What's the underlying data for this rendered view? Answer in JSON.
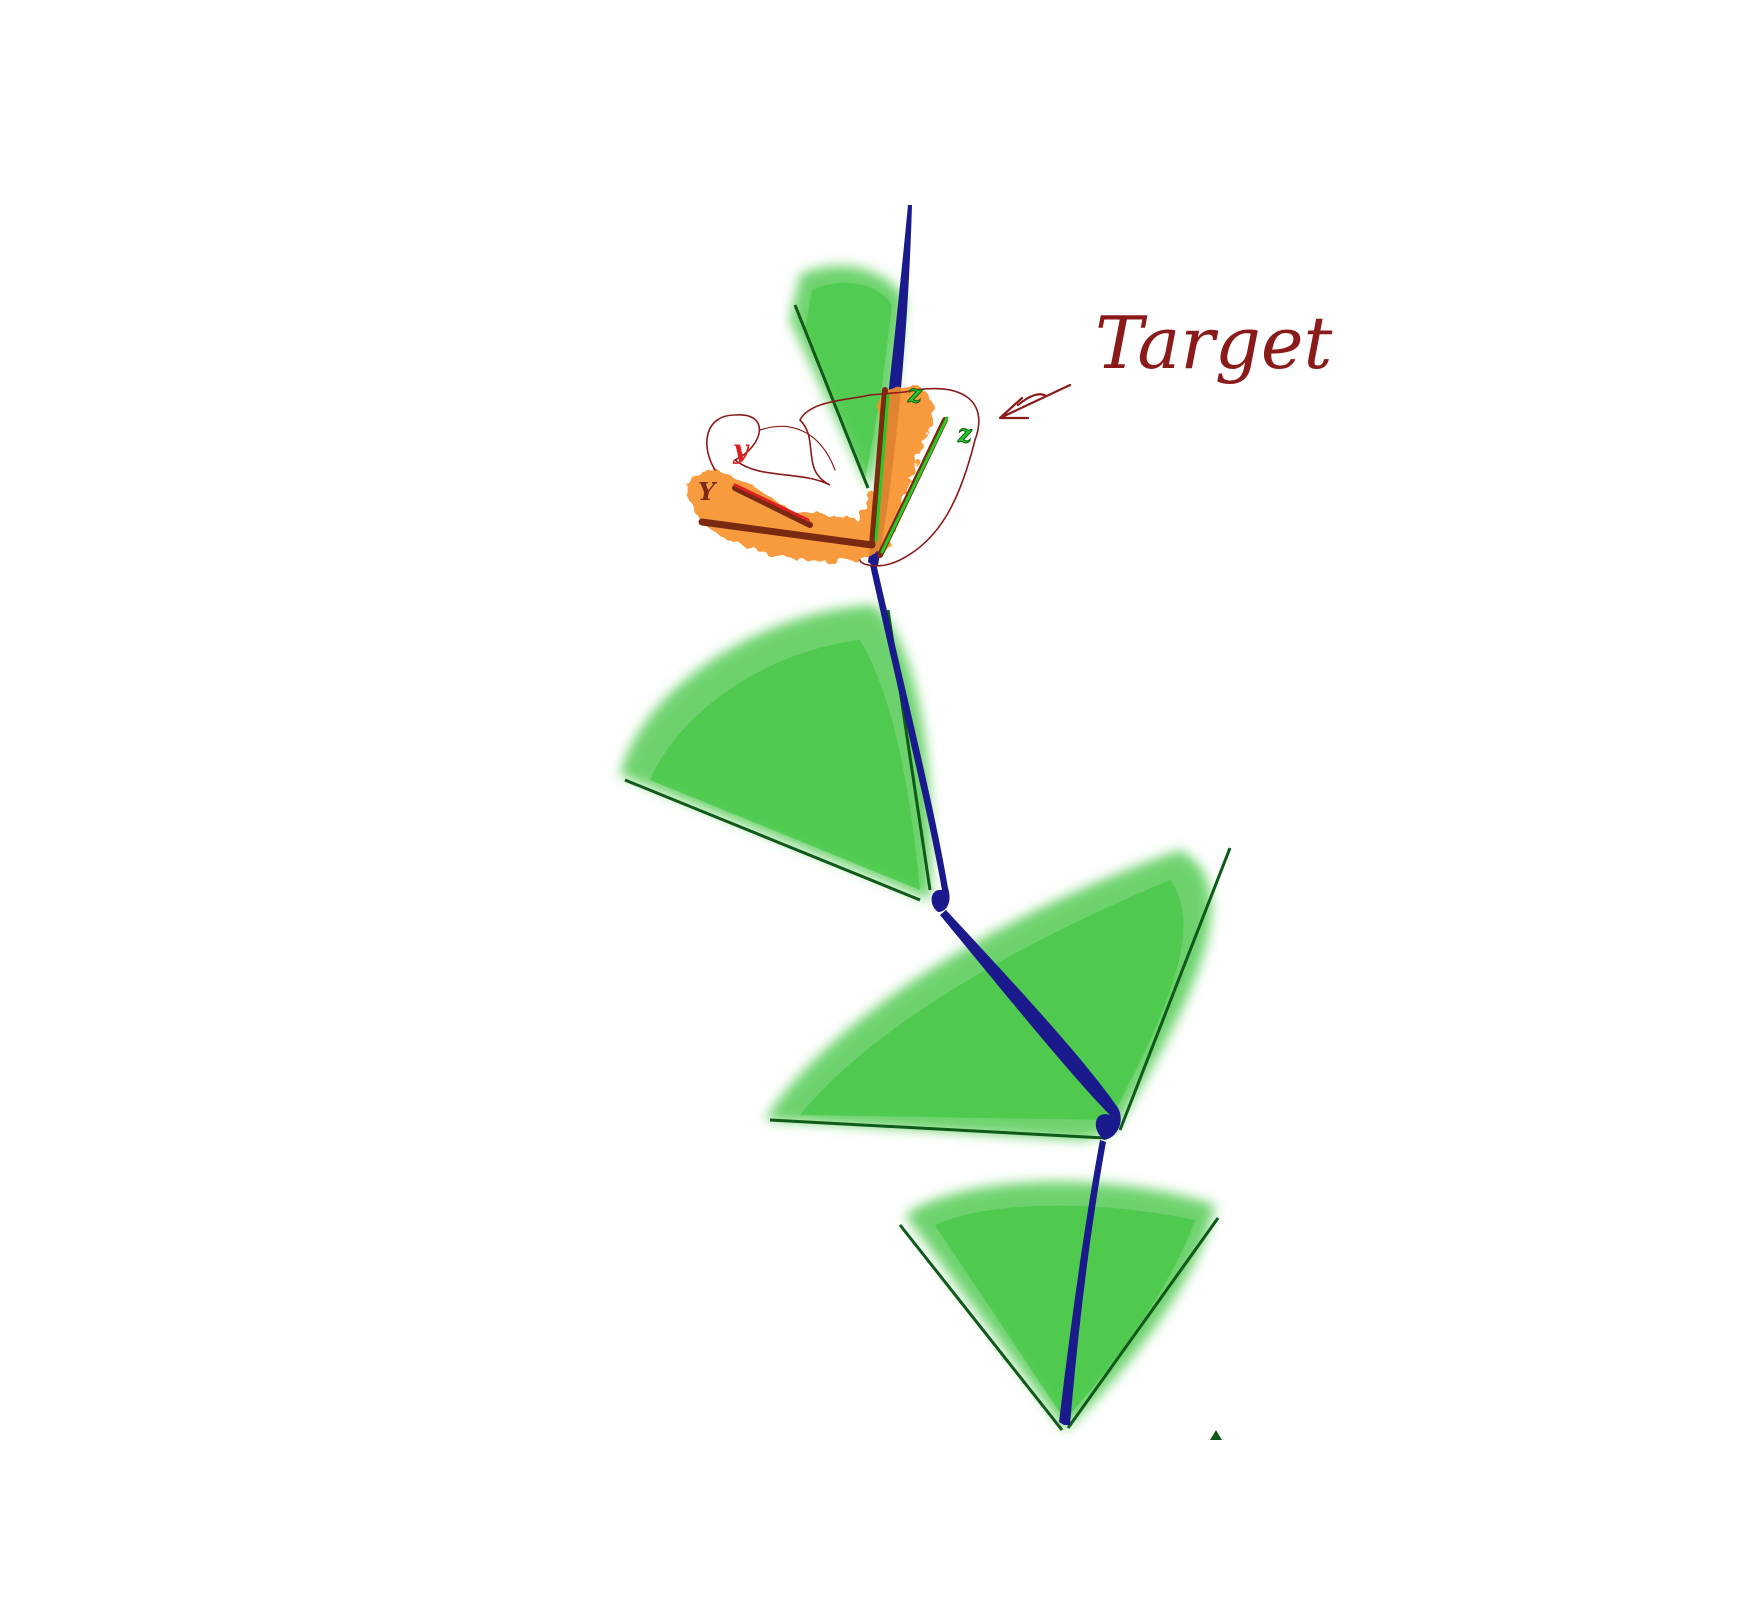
{
  "labels": {
    "target": "Target",
    "y_target": "y",
    "y_current": "Y",
    "z_target": "z",
    "z_current": "z"
  },
  "colors": {
    "background": "#ffffff",
    "cone_fill": "#3cc43c",
    "cone_edge": "#0f5a18",
    "bone": "#1a1a8c",
    "highlight": "#f7902a",
    "annotation": "#8b1a1a",
    "axis_y": "#e02020",
    "axis_z": "#22cc22",
    "axis_dark": "#7a2a10"
  }
}
